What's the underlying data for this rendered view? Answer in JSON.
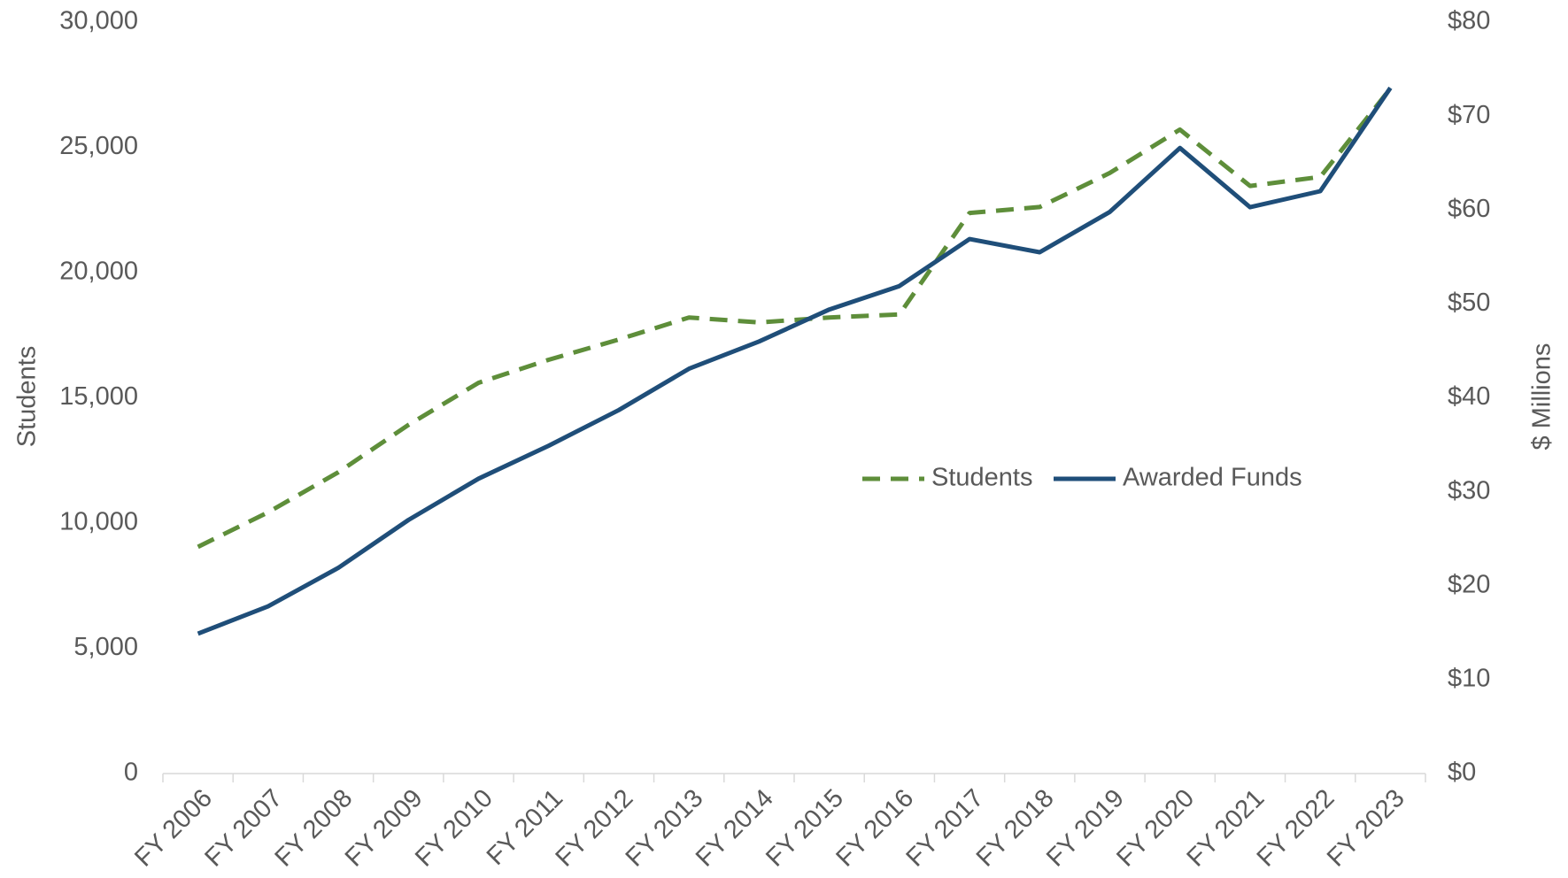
{
  "chart_data": {
    "type": "line",
    "categories": [
      "FY 2006",
      "FY 2007",
      "FY 2008",
      "FY 2009",
      "FY 2010",
      "FY 2011",
      "FY 2012",
      "FY 2013",
      "FY 2014",
      "FY 2015",
      "FY 2016",
      "FY 2017",
      "FY 2018",
      "FY 2019",
      "FY 2020",
      "FY 2021",
      "FY 2022",
      "FY 2023"
    ],
    "series": [
      {
        "name": "Students",
        "color": "#5e8e3a",
        "dash": true,
        "axis": "y",
        "values": [
          9050,
          10430,
          12030,
          13920,
          15600,
          16520,
          17330,
          18210,
          18010,
          18210,
          18330,
          22380,
          22620,
          23980,
          25710,
          23460,
          23820,
          27350
        ]
      },
      {
        "name": "Awarded Funds",
        "color": "#1f4e79",
        "dash": false,
        "axis": "y2",
        "values": [
          14.9,
          17.8,
          21.9,
          27.0,
          31.4,
          34.9,
          38.7,
          43.1,
          46.0,
          49.4,
          51.9,
          56.9,
          55.5,
          59.8,
          66.6,
          60.3,
          62.0,
          73.0
        ]
      }
    ],
    "ylabel": "Students",
    "y2label": "$ Millions",
    "ylim": [
      0,
      30000
    ],
    "yticks": [
      0,
      {
        "value": 5000,
        "label": "5,000"
      },
      {
        "value": 10000,
        "label": "10,000"
      },
      {
        "value": 15000,
        "label": "15,000"
      },
      {
        "value": 20000,
        "label": "20,000"
      },
      {
        "value": 25000,
        "label": "25,000"
      },
      {
        "value": 30000,
        "label": "30,000"
      }
    ],
    "y2lim": [
      0,
      80
    ],
    "y2ticks": [
      {
        "value": 0,
        "label": "$0"
      },
      {
        "value": 10,
        "label": "$10"
      },
      {
        "value": 20,
        "label": "$20"
      },
      {
        "value": 30,
        "label": "$30"
      },
      {
        "value": 40,
        "label": "$40"
      },
      {
        "value": 50,
        "label": "$50"
      },
      {
        "value": 60,
        "label": "$60"
      },
      {
        "value": 70,
        "label": "$70"
      },
      {
        "value": 80,
        "label": "$80"
      }
    ],
    "grid": false,
    "legend": "center-right"
  }
}
